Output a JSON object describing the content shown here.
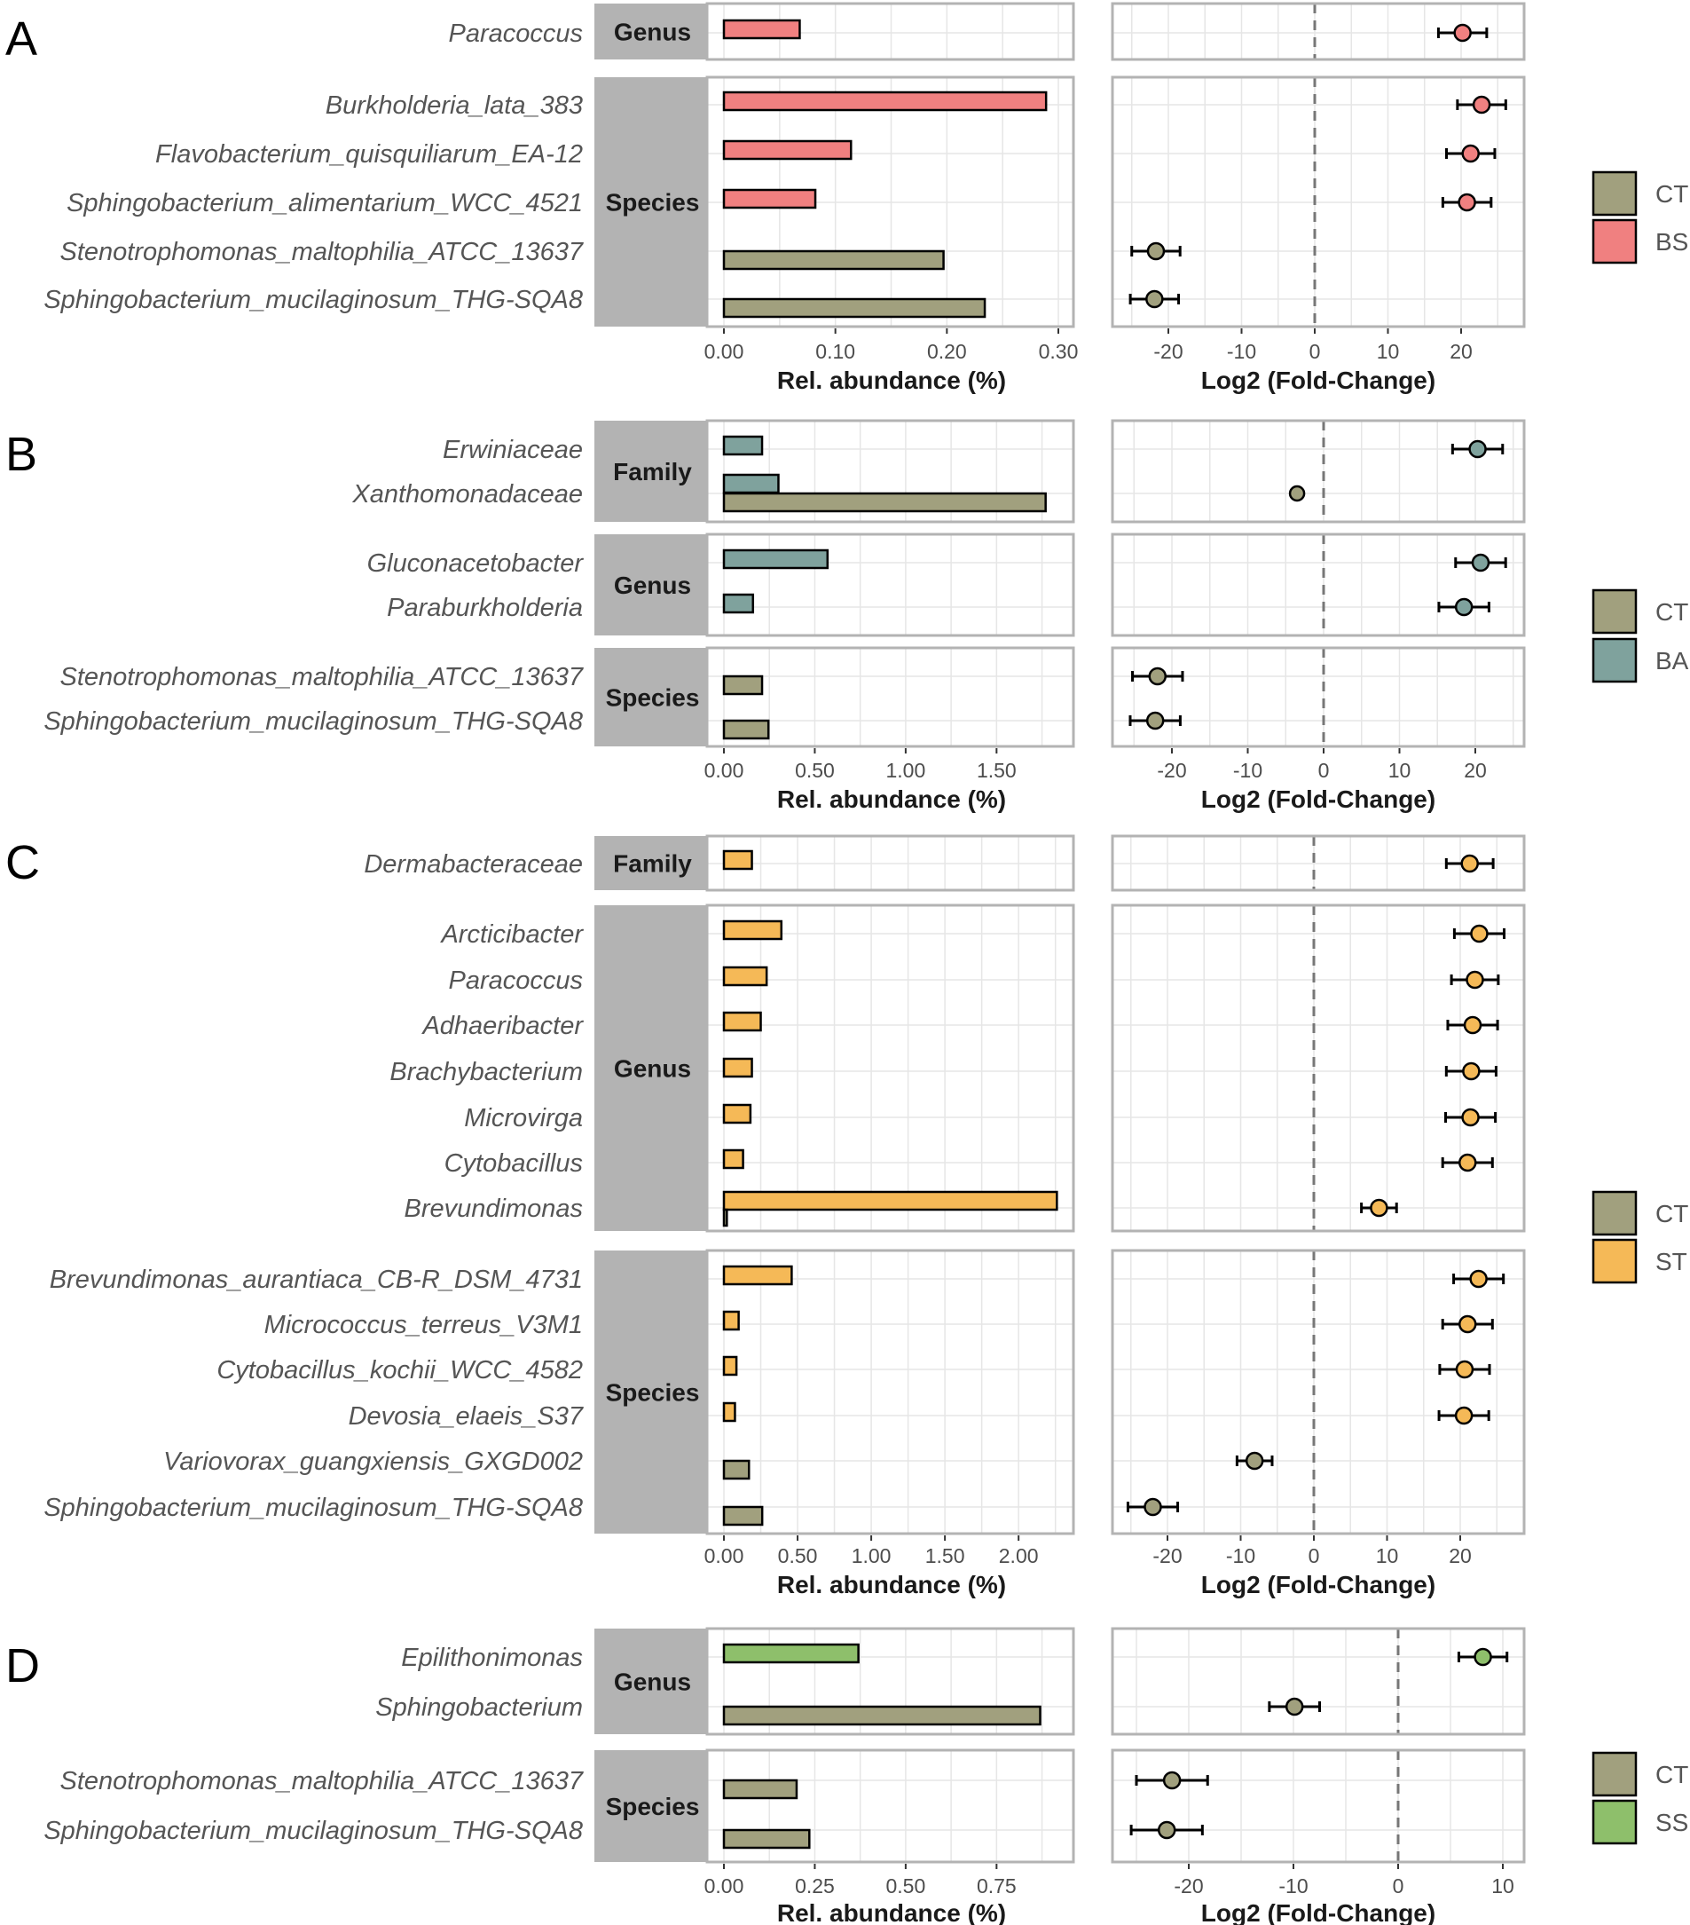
{
  "colors": {
    "CT": "#a1a07e",
    "BS": "#f08080",
    "BA": "#7fa29d",
    "ST": "#f5b957",
    "SS": "#8ebf6b",
    "strip": "#b3b3b3",
    "panel_border": "#b3b3b3",
    "grid": "#e6e6e6"
  },
  "chart_data": [
    {
      "panel": "A",
      "type": "bar",
      "abundance_axis": {
        "title": "Rel. abundance (%)",
        "range": [
          0,
          0.3
        ],
        "ticks": [
          0,
          0.1,
          0.2,
          0.3
        ],
        "tick_labels": [
          "0.00",
          "0.10",
          "0.20",
          "0.30"
        ]
      },
      "fold_axis": {
        "title": "Log2 (Fold-Change)",
        "range": [
          -27,
          29
        ],
        "ticks": [
          -20,
          -10,
          0,
          10,
          20
        ],
        "tick_labels": [
          "-20",
          "-10",
          "0",
          "10",
          "20"
        ]
      },
      "legend": [
        {
          "label": "CT",
          "color_key": "CT"
        },
        {
          "label": "BS",
          "color_key": "BS"
        }
      ],
      "groups": [
        {
          "rank": "Genus",
          "taxa": [
            {
              "name": "Paracoccus",
              "group": "BS",
              "abundance": 0.068,
              "lfc": 20.2,
              "err": 3.3
            }
          ]
        },
        {
          "rank": "Species",
          "taxa": [
            {
              "name": "Burkholderia_lata_383",
              "group": "BS",
              "abundance": 0.289,
              "lfc": 22.8,
              "err": 3.3
            },
            {
              "name": "Flavobacterium_quisquiliarum_EA-12",
              "group": "BS",
              "abundance": 0.114,
              "lfc": 21.3,
              "err": 3.3
            },
            {
              "name": "Sphingobacterium_alimentarium_WCC_4521",
              "group": "BS",
              "abundance": 0.082,
              "lfc": 20.8,
              "err": 3.3
            },
            {
              "name": "Stenotrophomonas_maltophilia_ATCC_13637",
              "group": "CT",
              "abundance": 0.197,
              "lfc": -21.7,
              "err": 3.3
            },
            {
              "name": "Sphingobacterium_mucilaginosum_THG-SQA8",
              "group": "CT",
              "abundance": 0.234,
              "lfc": -21.9,
              "err": 3.3
            }
          ]
        }
      ]
    },
    {
      "panel": "B",
      "type": "bar",
      "abundance_axis": {
        "title": "Rel. abundance (%)",
        "range": [
          0,
          1.84
        ],
        "ticks": [
          0,
          0.5,
          1,
          1.5
        ],
        "tick_labels": [
          "0.00",
          "0.50",
          "1.00",
          "1.50"
        ]
      },
      "fold_axis": {
        "title": "Log2 (Fold-Change)",
        "range": [
          -28,
          26
        ],
        "ticks": [
          -20,
          -10,
          0,
          10,
          20
        ],
        "tick_labels": [
          "-20",
          "-10",
          "0",
          "10",
          "20"
        ]
      },
      "legend": [
        {
          "label": "CT",
          "color_key": "CT"
        },
        {
          "label": "BA",
          "color_key": "BA"
        }
      ],
      "groups": [
        {
          "rank": "Family",
          "taxa": [
            {
              "name": "Erwiniaceae",
              "group": "BA",
              "abundance": 0.21,
              "lfc": 20.3,
              "err": 3.3
            },
            {
              "name": "Xanthomonadaceae",
              "group": "BA",
              "abundance": 0.3,
              "ct_abundance": 1.77,
              "lfc": -3.5,
              "err": 0.3,
              "point_group": "CT"
            }
          ]
        },
        {
          "rank": "Genus",
          "taxa": [
            {
              "name": "Gluconacetobacter",
              "group": "BA",
              "abundance": 0.57,
              "lfc": 20.7,
              "err": 3.3
            },
            {
              "name": "Paraburkholderia",
              "group": "BA",
              "abundance": 0.16,
              "lfc": 18.5,
              "err": 3.3
            }
          ]
        },
        {
          "rank": "Species",
          "taxa": [
            {
              "name": "Stenotrophomonas_maltophilia_ATCC_13637",
              "group": "CT",
              "abundance": 0.21,
              "lfc": -21.9,
              "err": 3.3
            },
            {
              "name": "Sphingobacterium_mucilaginosum_THG-SQA8",
              "group": "CT",
              "abundance": 0.245,
              "lfc": -22.2,
              "err": 3.3
            }
          ]
        }
      ]
    },
    {
      "panel": "C",
      "type": "bar",
      "abundance_axis": {
        "title": "Rel. abundance (%)",
        "range": [
          0,
          2.27
        ],
        "ticks": [
          0,
          0.5,
          1,
          1.5,
          2
        ],
        "tick_labels": [
          "0.00",
          "0.50",
          "1.00",
          "1.50",
          "2.00"
        ]
      },
      "fold_axis": {
        "title": "Log2 (Fold-Change)",
        "range": [
          -28,
          28.5
        ],
        "ticks": [
          -20,
          -10,
          0,
          10,
          20
        ],
        "tick_labels": [
          "-20",
          "-10",
          "0",
          "10",
          "20"
        ]
      },
      "legend": [
        {
          "label": "CT",
          "color_key": "CT"
        },
        {
          "label": "ST",
          "color_key": "ST"
        }
      ],
      "groups": [
        {
          "rank": "Family",
          "taxa": [
            {
              "name": "Dermabacteraceae",
              "group": "ST",
              "abundance": 0.19,
              "lfc": 21.3,
              "err": 3.2
            }
          ]
        },
        {
          "rank": "Genus",
          "taxa": [
            {
              "name": "Arcticibacter",
              "group": "ST",
              "abundance": 0.39,
              "lfc": 22.6,
              "err": 3.4
            },
            {
              "name": "Paracoccus",
              "group": "ST",
              "abundance": 0.29,
              "lfc": 22.0,
              "err": 3.2
            },
            {
              "name": "Adhaeribacter",
              "group": "ST",
              "abundance": 0.25,
              "lfc": 21.7,
              "err": 3.4
            },
            {
              "name": "Brachybacterium",
              "group": "ST",
              "abundance": 0.19,
              "lfc": 21.5,
              "err": 3.4
            },
            {
              "name": "Microvirga",
              "group": "ST",
              "abundance": 0.18,
              "lfc": 21.4,
              "err": 3.4
            },
            {
              "name": "Cytobacillus",
              "group": "ST",
              "abundance": 0.13,
              "lfc": 21.0,
              "err": 3.4
            },
            {
              "name": "Brevundimonas",
              "group": "ST",
              "abundance": 2.26,
              "ct_abundance": 0.02,
              "lfc": 8.9,
              "err": 2.4
            }
          ]
        },
        {
          "rank": "Species",
          "taxa": [
            {
              "name": "Brevundimonas_aurantiaca_CB-R_DSM_4731",
              "group": "ST",
              "abundance": 0.46,
              "lfc": 22.5,
              "err": 3.4
            },
            {
              "name": "Micrococcus_terreus_V3M1",
              "group": "ST",
              "abundance": 0.1,
              "lfc": 21.0,
              "err": 3.4
            },
            {
              "name": "Cytobacillus_kochii_WCC_4582",
              "group": "ST",
              "abundance": 0.085,
              "lfc": 20.6,
              "err": 3.4
            },
            {
              "name": "Devosia_elaeis_S37",
              "group": "ST",
              "abundance": 0.075,
              "lfc": 20.5,
              "err": 3.4
            },
            {
              "name": "Variovorax_guangxiensis_GXGD002",
              "group": "CT",
              "abundance": 0.17,
              "lfc": -8.1,
              "err": 2.4
            },
            {
              "name": "Sphingobacterium_mucilaginosum_THG-SQA8",
              "group": "CT",
              "abundance": 0.26,
              "lfc": -22.0,
              "err": 3.4
            }
          ]
        }
      ]
    },
    {
      "panel": "D",
      "type": "bar",
      "abundance_axis": {
        "title": "Rel. abundance (%)",
        "range": [
          0,
          0.92
        ],
        "ticks": [
          0,
          0.25,
          0.5,
          0.75
        ],
        "tick_labels": [
          "0.00",
          "0.25",
          "0.50",
          "0.75"
        ]
      },
      "fold_axis": {
        "title": "Log2 (Fold-Change)",
        "range": [
          -27.5,
          12
        ],
        "ticks": [
          -20,
          -10,
          0,
          10
        ],
        "tick_labels": [
          "-20",
          "-10",
          "0",
          "10"
        ]
      },
      "legend": [
        {
          "label": "CT",
          "color_key": "CT"
        },
        {
          "label": "SS",
          "color_key": "SS"
        }
      ],
      "groups": [
        {
          "rank": "Genus",
          "taxa": [
            {
              "name": "Epilithonimonas",
              "group": "SS",
              "abundance": 0.37,
              "lfc": 8.1,
              "err": 2.3
            },
            {
              "name": "Sphingobacterium",
              "group": "CT",
              "abundance": 0.87,
              "lfc": -9.9,
              "err": 2.4
            }
          ]
        },
        {
          "rank": "Species",
          "taxa": [
            {
              "name": "Stenotrophomonas_maltophilia_ATCC_13637",
              "group": "CT",
              "abundance": 0.2,
              "lfc": -21.6,
              "err": 3.4
            },
            {
              "name": "Sphingobacterium_mucilaginosum_THG-SQA8",
              "group": "CT",
              "abundance": 0.235,
              "lfc": -22.1,
              "err": 3.4
            }
          ]
        }
      ]
    }
  ]
}
